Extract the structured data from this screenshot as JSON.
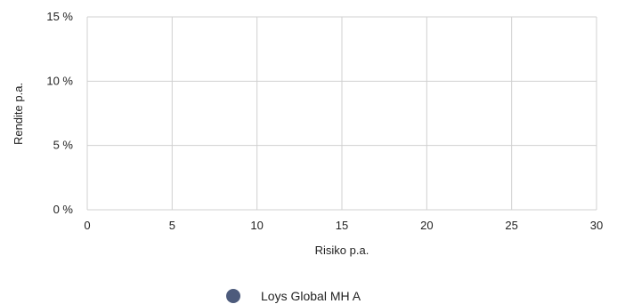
{
  "chart_data": {
    "type": "scatter",
    "xlabel": "Risiko p.a.",
    "ylabel": "Rendite p.a.",
    "xlim": [
      0,
      30
    ],
    "ylim": [
      0,
      15
    ],
    "x_ticks": [
      0,
      5,
      10,
      15,
      20,
      25,
      30
    ],
    "x_tick_labels": [
      "0",
      "5",
      "10",
      "15",
      "20",
      "25",
      "30"
    ],
    "y_ticks": [
      0,
      5,
      10,
      15
    ],
    "y_tick_labels": [
      "0 %",
      "5 %",
      "10 %",
      "15 %"
    ],
    "grid": true,
    "legend_position": "bottom-center",
    "series": [
      {
        "name": "Loys Global MH A",
        "color": "#4d5b7c",
        "points": []
      }
    ]
  }
}
